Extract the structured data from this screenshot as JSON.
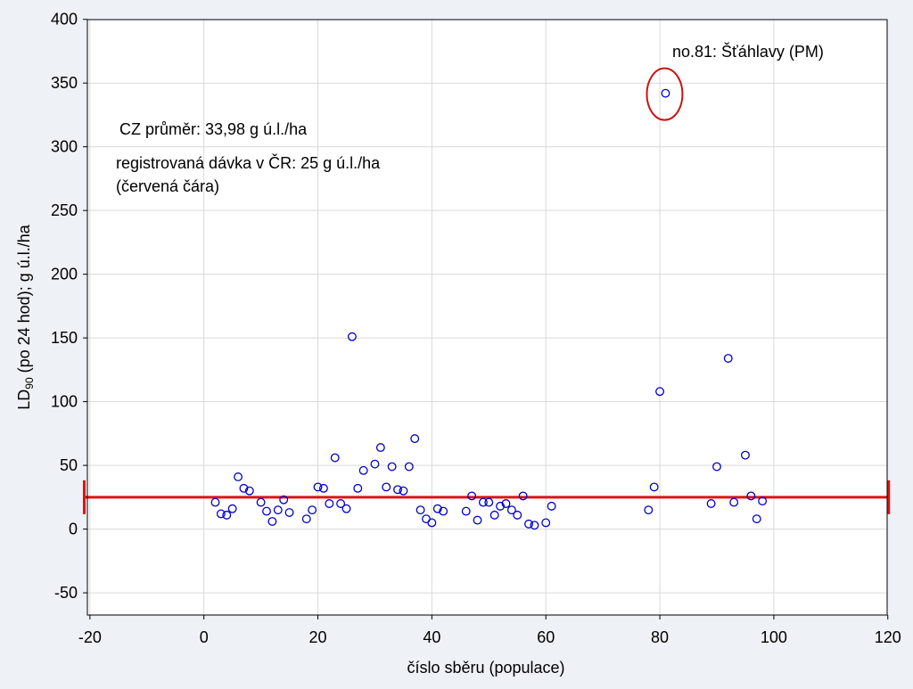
{
  "chart_data": {
    "type": "scatter",
    "xlabel": "číslo sběru (populace)",
    "ylabel_main": "LD",
    "ylabel_sub": "90",
    "ylabel_rest": " (po 24 hod); g ú.l./ha",
    "xlim": [
      -20,
      120
    ],
    "ylim": [
      -60,
      400
    ],
    "xticks": [
      -20,
      0,
      20,
      40,
      60,
      80,
      100,
      120
    ],
    "yticks": [
      -50,
      0,
      50,
      100,
      150,
      200,
      250,
      300,
      350,
      400
    ],
    "grid": true,
    "marker_color": "#0000cc",
    "reference_line": {
      "y": 25,
      "x_from": -21,
      "x_to": 120,
      "color": "#e01010"
    },
    "highlight_point": {
      "x": 81,
      "y": 342,
      "color": "#cc1111"
    },
    "annotations": {
      "highlight_label": "no.81: Šťáhlavy (PM)",
      "mean_text": "CZ průměr: 33,98 g ú.l./ha",
      "dose_text": "registrovaná dávka v ČR: 25 g ú.l./ha",
      "dose_note": "(červená čára)"
    },
    "points": [
      {
        "x": 2,
        "y": 21
      },
      {
        "x": 3,
        "y": 12
      },
      {
        "x": 4,
        "y": 11
      },
      {
        "x": 5,
        "y": 16
      },
      {
        "x": 6,
        "y": 41
      },
      {
        "x": 7,
        "y": 32
      },
      {
        "x": 8,
        "y": 30
      },
      {
        "x": 10,
        "y": 21
      },
      {
        "x": 11,
        "y": 14
      },
      {
        "x": 12,
        "y": 6
      },
      {
        "x": 13,
        "y": 15
      },
      {
        "x": 14,
        "y": 23
      },
      {
        "x": 15,
        "y": 13
      },
      {
        "x": 18,
        "y": 8
      },
      {
        "x": 19,
        "y": 15
      },
      {
        "x": 20,
        "y": 33
      },
      {
        "x": 21,
        "y": 32
      },
      {
        "x": 22,
        "y": 20
      },
      {
        "x": 23,
        "y": 56
      },
      {
        "x": 24,
        "y": 20
      },
      {
        "x": 25,
        "y": 16
      },
      {
        "x": 26,
        "y": 151
      },
      {
        "x": 27,
        "y": 32
      },
      {
        "x": 28,
        "y": 46
      },
      {
        "x": 30,
        "y": 51
      },
      {
        "x": 31,
        "y": 64
      },
      {
        "x": 32,
        "y": 33
      },
      {
        "x": 33,
        "y": 49
      },
      {
        "x": 34,
        "y": 31
      },
      {
        "x": 35,
        "y": 30
      },
      {
        "x": 36,
        "y": 49
      },
      {
        "x": 37,
        "y": 71
      },
      {
        "x": 38,
        "y": 15
      },
      {
        "x": 39,
        "y": 8
      },
      {
        "x": 40,
        "y": 5
      },
      {
        "x": 41,
        "y": 16
      },
      {
        "x": 42,
        "y": 14
      },
      {
        "x": 46,
        "y": 14
      },
      {
        "x": 47,
        "y": 26
      },
      {
        "x": 48,
        "y": 7
      },
      {
        "x": 49,
        "y": 21
      },
      {
        "x": 50,
        "y": 21
      },
      {
        "x": 51,
        "y": 11
      },
      {
        "x": 52,
        "y": 18
      },
      {
        "x": 53,
        "y": 20
      },
      {
        "x": 54,
        "y": 15
      },
      {
        "x": 55,
        "y": 11
      },
      {
        "x": 56,
        "y": 26
      },
      {
        "x": 57,
        "y": 4
      },
      {
        "x": 58,
        "y": 3
      },
      {
        "x": 60,
        "y": 5
      },
      {
        "x": 61,
        "y": 18
      },
      {
        "x": 78,
        "y": 15
      },
      {
        "x": 79,
        "y": 33
      },
      {
        "x": 80,
        "y": 108
      },
      {
        "x": 81,
        "y": 342
      },
      {
        "x": 89,
        "y": 20
      },
      {
        "x": 90,
        "y": 49
      },
      {
        "x": 92,
        "y": 134
      },
      {
        "x": 93,
        "y": 21
      },
      {
        "x": 95,
        "y": 58
      },
      {
        "x": 96,
        "y": 26
      },
      {
        "x": 97,
        "y": 8
      },
      {
        "x": 98,
        "y": 22
      }
    ]
  }
}
